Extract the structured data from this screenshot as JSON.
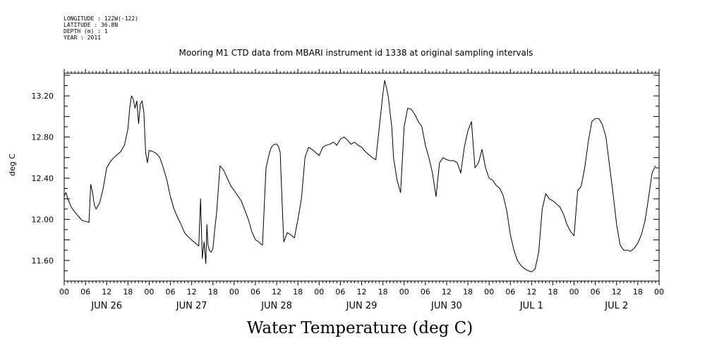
{
  "metadata": {
    "longitude": "LONGITUDE : 122W(-122)",
    "latitude": "LATITUDE : 36.8N",
    "depth": "DEPTH (m) : 1",
    "year": "YEAR : 2011"
  },
  "chart_data": {
    "type": "line",
    "title": "Mooring M1 CTD data from MBARI instrument id 1338 at original sampling intervals",
    "xlabel": "Water Temperature (deg C)",
    "ylabel": "deg C",
    "ylim": [
      11.4,
      13.42
    ],
    "xlim_hours": [
      0,
      168
    ],
    "yticks": [
      11.6,
      12.0,
      12.4,
      12.8,
      13.2
    ],
    "ytick_labels": [
      "11.60",
      "12.00",
      "12.40",
      "12.80",
      "13.20"
    ],
    "hour_tick_labels": [
      "00",
      "06",
      "12",
      "18",
      "00",
      "06",
      "12",
      "18",
      "00",
      "06",
      "12",
      "18",
      "00",
      "06",
      "12",
      "18",
      "00",
      "06",
      "12",
      "18",
      "00",
      "06",
      "12",
      "18",
      "00",
      "06",
      "12",
      "18",
      "00"
    ],
    "day_labels": [
      "JUN 26",
      "JUN 27",
      "JUN 28",
      "JUN 29",
      "JUN 30",
      "JUL  1",
      "JUL  2"
    ],
    "grid": false,
    "series": [
      {
        "x": [
          0,
          0.5,
          1,
          1.5,
          2,
          3,
          4,
          5,
          6,
          7,
          7.5,
          8,
          8.5,
          9,
          9.5,
          10,
          11,
          12,
          13,
          14,
          15,
          16,
          17,
          18,
          18.5,
          19,
          19.5,
          20,
          20.5,
          21,
          21.5,
          22,
          22.5,
          23,
          23.5,
          24,
          25,
          26,
          27,
          28,
          29,
          30,
          31,
          32,
          33,
          34,
          35,
          36,
          37,
          38,
          38.5,
          39,
          39.5,
          40,
          40.3,
          40.6,
          41,
          41.5,
          42,
          42.5,
          43,
          44,
          45,
          47,
          50,
          52,
          53,
          54,
          55,
          55.5,
          56,
          57,
          58,
          58.5,
          59,
          59.5,
          60,
          60.5,
          61,
          61.5,
          62,
          63,
          64,
          65,
          66,
          67,
          68,
          69,
          70,
          71,
          72,
          73,
          74,
          75,
          76,
          77,
          78,
          79,
          80,
          81,
          82,
          83,
          84,
          85,
          86,
          87,
          88,
          89,
          90,
          90.5,
          91,
          91.5,
          92,
          92.5,
          93,
          94,
          95,
          96,
          97,
          98,
          99,
          100,
          101,
          102,
          103,
          104,
          105,
          106,
          107,
          108,
          109,
          110,
          111,
          112,
          113,
          114,
          115,
          116,
          117,
          118,
          119,
          120,
          121,
          122,
          123,
          124,
          125,
          126,
          127,
          128,
          129,
          130,
          131,
          132,
          133,
          134,
          135,
          136,
          137,
          138,
          139,
          140,
          141,
          142,
          143,
          144,
          145,
          146,
          147,
          148,
          149,
          150,
          151,
          152,
          153,
          154,
          155,
          156,
          157,
          158,
          159,
          160,
          161,
          162,
          163,
          164,
          165,
          166,
          167
        ],
        "y": [
          12.23,
          12.26,
          12.2,
          12.16,
          12.12,
          12.07,
          12.03,
          11.99,
          11.98,
          11.97,
          12.34,
          12.26,
          12.14,
          12.1,
          12.13,
          12.16,
          12.3,
          12.5,
          12.56,
          12.6,
          12.63,
          12.66,
          12.72,
          12.88,
          13.08,
          13.2,
          13.17,
          13.08,
          13.15,
          12.93,
          13.12,
          13.15,
          13.04,
          12.65,
          12.55,
          12.67,
          12.66,
          12.64,
          12.6,
          12.5,
          12.38,
          12.22,
          12.1,
          12.02,
          11.95,
          11.87,
          11.83,
          11.8,
          11.77,
          11.74,
          12.2,
          11.62,
          11.78,
          11.57,
          11.95,
          11.75,
          11.7,
          11.68,
          11.72,
          11.9,
          12.05,
          12.52,
          12.48,
          12.33,
          12.18,
          12.0,
          11.88,
          11.8,
          11.78,
          11.76,
          11.75,
          12.5,
          12.65,
          12.7,
          12.72,
          12.73,
          12.73,
          12.71,
          12.65,
          12.2,
          11.78,
          11.87,
          11.85,
          11.82,
          12.0,
          12.2,
          12.6,
          12.7,
          12.68,
          12.65,
          12.62,
          12.7,
          12.72,
          12.73,
          12.75,
          12.72,
          12.78,
          12.8,
          12.77,
          12.73,
          12.75,
          12.72,
          12.7,
          12.66,
          12.63,
          12.6,
          12.58,
          12.9,
          13.22,
          13.35,
          13.28,
          13.2,
          13.05,
          12.9,
          12.6,
          12.38,
          12.26,
          12.9,
          13.08,
          13.07,
          13.02,
          12.95,
          12.9,
          12.72,
          12.6,
          12.45,
          12.22,
          12.55,
          12.6,
          12.58,
          12.57,
          12.57,
          12.55,
          12.45,
          12.7,
          12.86,
          12.95,
          12.5,
          12.55,
          12.68,
          12.5,
          12.4,
          12.38,
          12.33,
          12.3,
          12.23,
          12.08,
          11.85,
          11.7,
          11.6,
          11.55,
          11.52,
          11.5,
          11.49,
          11.52,
          11.68,
          12.1,
          12.25,
          12.2,
          12.18,
          12.15,
          12.12,
          12.05,
          11.95,
          11.88,
          11.84,
          12.28,
          12.32,
          12.5,
          12.75,
          12.95,
          12.98,
          12.98,
          12.92,
          12.8,
          12.52,
          12.25,
          11.95,
          11.75,
          11.7,
          11.7,
          11.69,
          11.72,
          11.77,
          11.85,
          11.98,
          12.2,
          12.45,
          12.52
        ]
      }
    ]
  }
}
